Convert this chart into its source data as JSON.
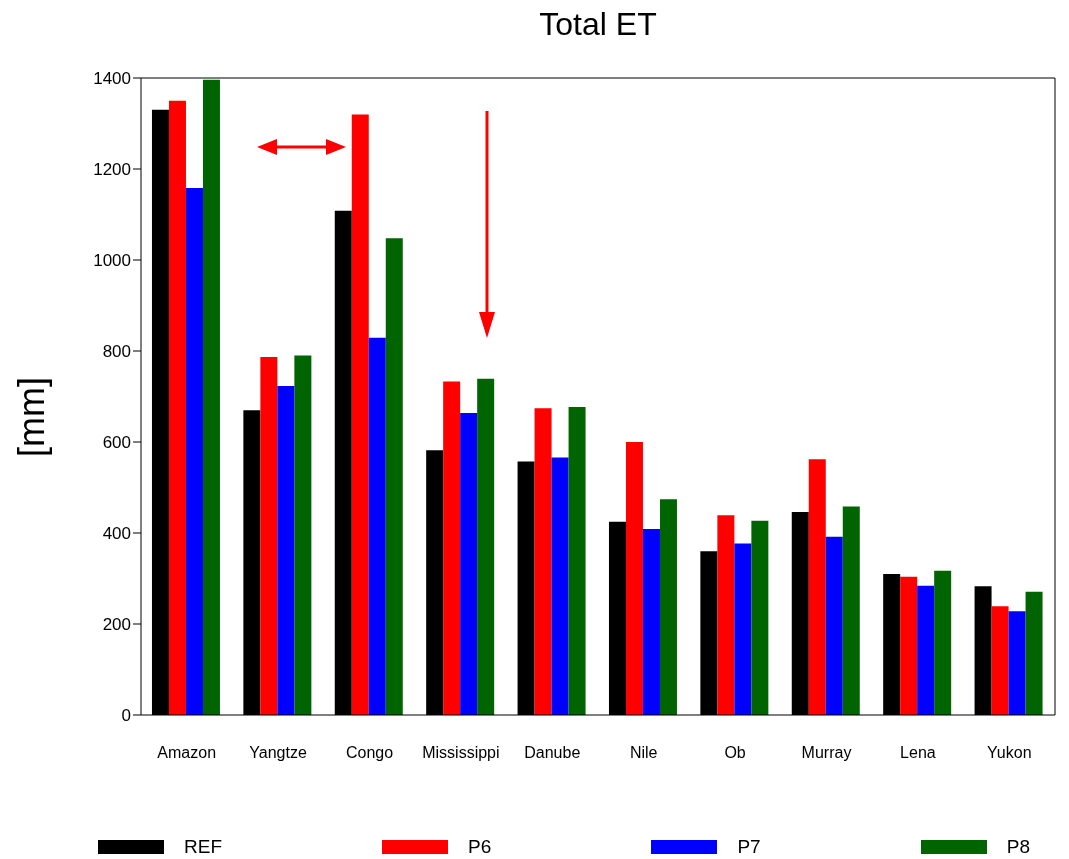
{
  "chart_data": {
    "type": "bar",
    "title": "Total ET",
    "ylabel": "[mm]",
    "categories": [
      "Amazon",
      "Yangtze",
      "Congo",
      "Mississippi",
      "Danube",
      "Nile",
      "Ob",
      "Murray",
      "Lena",
      "Yukon"
    ],
    "series": [
      {
        "name": "REF",
        "color": "#000000",
        "values": [
          1330,
          670,
          1108,
          582,
          557,
          425,
          360,
          446,
          310,
          283
        ]
      },
      {
        "name": "P6",
        "color": "#ff0000",
        "values": [
          1350,
          787,
          1320,
          733,
          674,
          600,
          439,
          562,
          304,
          239
        ]
      },
      {
        "name": "P7",
        "color": "#0000ff",
        "values": [
          1158,
          723,
          829,
          664,
          566,
          409,
          377,
          392,
          284,
          228
        ]
      },
      {
        "name": "P8",
        "color": "#006400",
        "values": [
          1396,
          790,
          1048,
          739,
          677,
          474,
          427,
          458,
          317,
          271
        ]
      }
    ],
    "ylim": [
      0,
      1400
    ],
    "yticks": [
      0,
      200,
      400,
      600,
      800,
      1000,
      1200,
      1400
    ],
    "grid": false,
    "legend": "bottom"
  }
}
